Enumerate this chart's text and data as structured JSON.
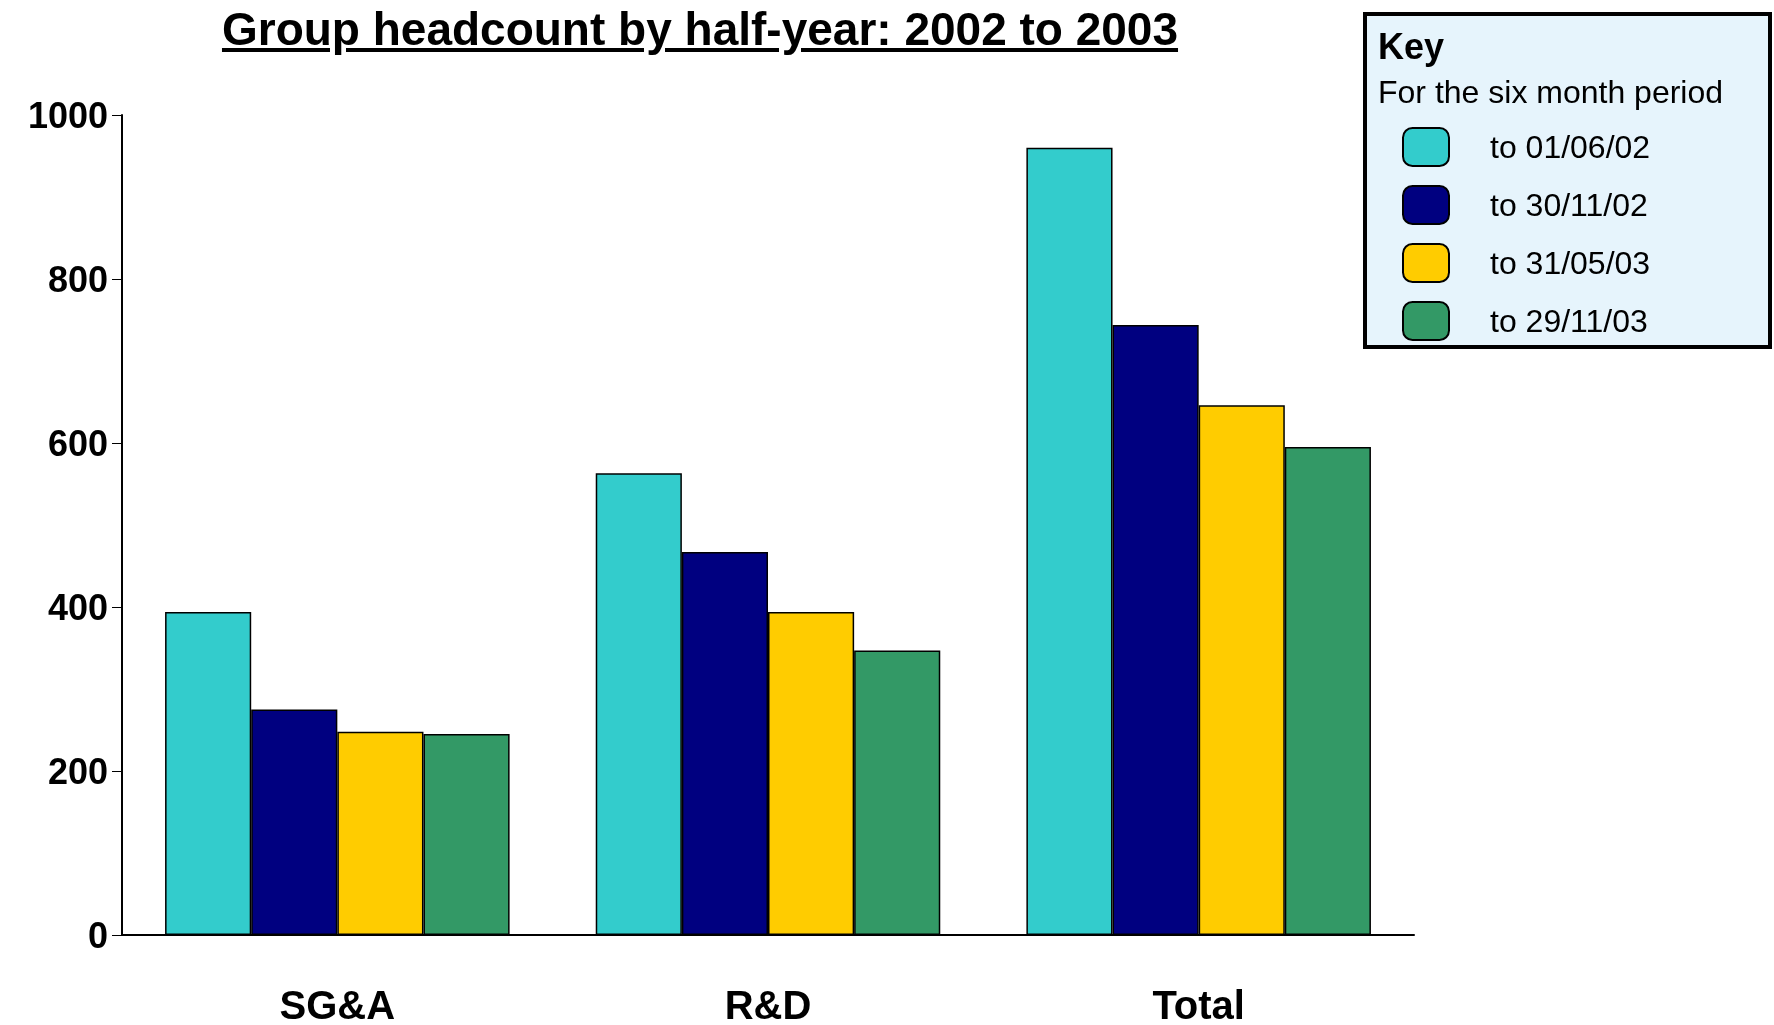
{
  "chart_data": {
    "type": "bar",
    "title": "Group headcount by half-year: 2002 to 2003",
    "categories": [
      "SG&A",
      "R&D",
      "Total"
    ],
    "series": [
      {
        "name": "to 01/06/02",
        "color": "#33cccc",
        "values": [
          394,
          563,
          960
        ]
      },
      {
        "name": "to 30/11/02",
        "color": "#000080",
        "values": [
          275,
          467,
          744
        ]
      },
      {
        "name": "to 31/05/03",
        "color": "#ffcc00",
        "values": [
          248,
          394,
          646
        ]
      },
      {
        "name": "to 29/11/03",
        "color": "#339966",
        "values": [
          245,
          347,
          595
        ]
      }
    ],
    "ylim": [
      0,
      1000
    ],
    "yticks": [
      0,
      200,
      400,
      600,
      800,
      1000
    ],
    "grid": false,
    "legend": "top right",
    "legend_title": "Key",
    "annotations": [
      "For the six month period"
    ]
  }
}
